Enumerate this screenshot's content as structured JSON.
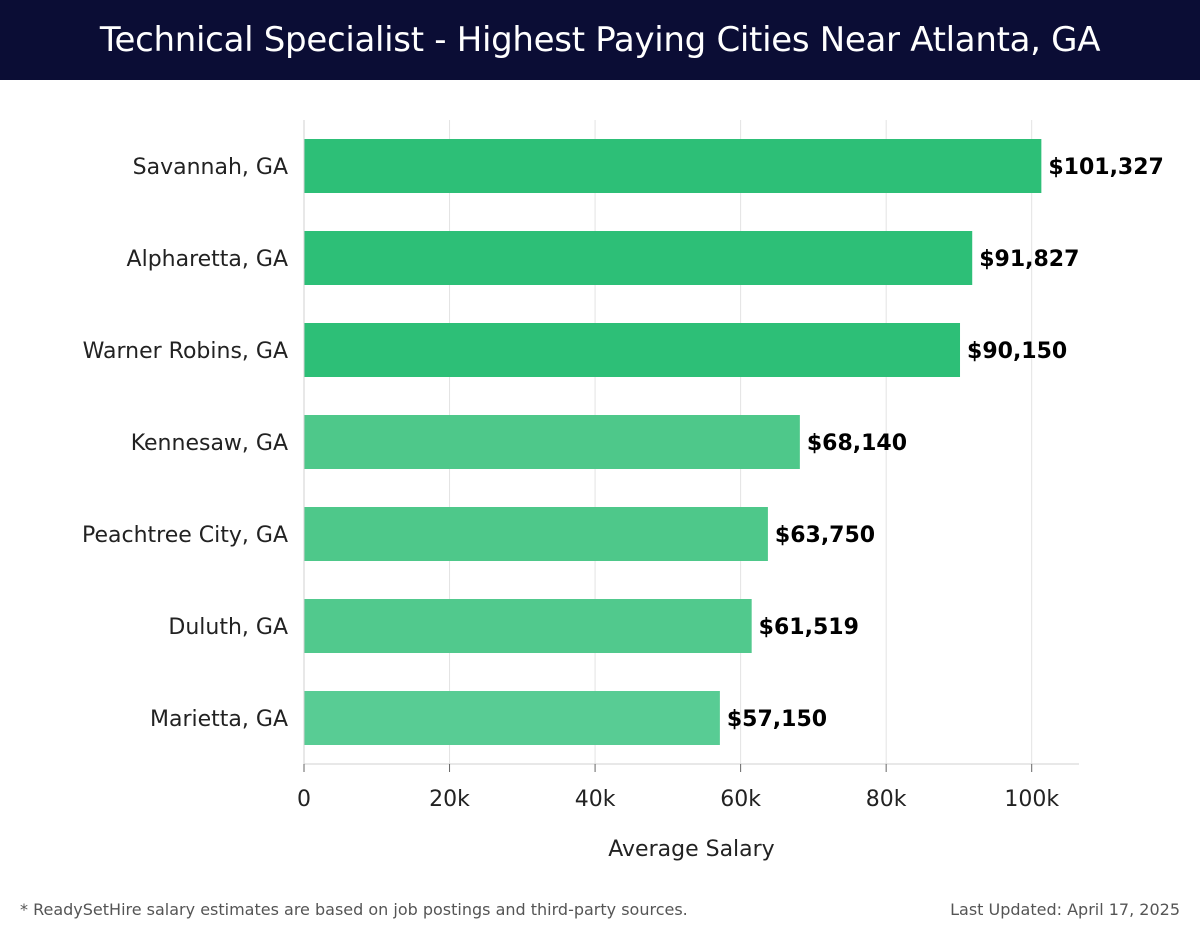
{
  "header": {
    "title": "Technical Specialist - Highest Paying Cities Near Atlanta, GA"
  },
  "chart_data": {
    "type": "bar",
    "orientation": "horizontal",
    "categories": [
      "Savannah, GA",
      "Alpharetta, GA",
      "Warner Robins, GA",
      "Kennesaw, GA",
      "Peachtree City, GA",
      "Duluth, GA",
      "Marietta, GA"
    ],
    "values": [
      101327,
      91827,
      90150,
      68140,
      63750,
      61519,
      57150
    ],
    "value_labels": [
      "$101,327",
      "$91,827",
      "$90,150",
      "$68,140",
      "$63,750",
      "$61,519",
      "$57,150"
    ],
    "xlabel": "Average Salary",
    "ylabel": "",
    "xlim": [
      0,
      106500
    ],
    "xticks": [
      0,
      20000,
      40000,
      60000,
      80000,
      100000
    ],
    "xtick_labels": [
      "0",
      "20k",
      "40k",
      "60k",
      "80k",
      "100k"
    ],
    "grid": true,
    "colors": {
      "high": "#2dbf77",
      "mid": "#4ec88a",
      "low": "#58cc94"
    },
    "bar_colors": [
      "#2dbf77",
      "#2dbf77",
      "#2dbf77",
      "#4ec88a",
      "#4ec88a",
      "#51c98d",
      "#58cc94"
    ]
  },
  "footer": {
    "note": "* ReadySetHire salary estimates are based on job postings and third-party sources.",
    "updated": "Last Updated: April 17, 2025"
  }
}
